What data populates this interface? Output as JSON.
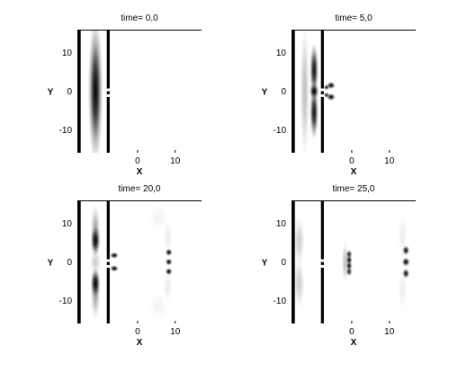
{
  "chart_data": [
    {
      "type": "heatmap",
      "title": "time= 0,0",
      "xlabel": "X",
      "ylabel": "Y",
      "xlim": [
        -16,
        17
      ],
      "ylim": [
        -16,
        16
      ],
      "xticks": [
        "0",
        "10"
      ],
      "xtick_values": [
        0,
        10
      ],
      "yticks": [
        "10",
        "0",
        "-10"
      ],
      "ytick_values": [
        10,
        0,
        -10
      ],
      "colormap": "white-to-black intensity",
      "walls": [
        {
          "x": -15.5
        },
        {
          "x": -7.8,
          "slits": [
            -1.5,
            0.7
          ]
        }
      ],
      "blobs": [
        {
          "x": -11.2,
          "y": 0,
          "sx": 0.9,
          "sy": 8.5,
          "amp": 1.0
        }
      ]
    },
    {
      "type": "heatmap",
      "title": "time= 5,0",
      "xlabel": "X",
      "ylabel": "Y",
      "xlim": [
        -16,
        17
      ],
      "ylim": [
        -16,
        16
      ],
      "xticks": [
        "0",
        "10"
      ],
      "xtick_values": [
        0,
        10
      ],
      "yticks": [
        "10",
        "0",
        "-10"
      ],
      "ytick_values": [
        10,
        0,
        -10
      ],
      "colormap": "white-to-black intensity",
      "walls": [
        {
          "x": -15.5
        },
        {
          "x": -7.8,
          "slits": [
            -1.5,
            0.7
          ]
        }
      ],
      "blobs": [
        {
          "x": -10.0,
          "y": 5.5,
          "sx": 0.55,
          "sy": 3.2,
          "amp": 0.95
        },
        {
          "x": -10.0,
          "y": -5.5,
          "sx": 0.55,
          "sy": 3.2,
          "amp": 0.95
        },
        {
          "x": -10.0,
          "y": 0,
          "sx": 0.6,
          "sy": 0.9,
          "amp": 1.0
        },
        {
          "x": -12.5,
          "y": 0,
          "sx": 0.6,
          "sy": 8,
          "amp": 0.25
        },
        {
          "x": -5.5,
          "y": 1.5,
          "sx": 0.55,
          "sy": 0.45,
          "amp": 1.0
        },
        {
          "x": -5.5,
          "y": -1.5,
          "sx": 0.55,
          "sy": 0.45,
          "amp": 1.0
        },
        {
          "x": -6.7,
          "y": 1.0,
          "sx": 0.35,
          "sy": 0.35,
          "amp": 0.9
        },
        {
          "x": -6.7,
          "y": -1.0,
          "sx": 0.35,
          "sy": 0.35,
          "amp": 0.9
        }
      ]
    },
    {
      "type": "heatmap",
      "title": "time= 20,0",
      "xlabel": "X",
      "ylabel": "Y",
      "xlim": [
        -16,
        17
      ],
      "ylim": [
        -16,
        16
      ],
      "xticks": [
        "0",
        "10"
      ],
      "xtick_values": [
        0,
        10
      ],
      "yticks": [
        "10",
        "0",
        "-10"
      ],
      "ytick_values": [
        10,
        0,
        -10
      ],
      "colormap": "white-to-black intensity",
      "walls": [
        {
          "x": -15.5
        },
        {
          "x": -7.8,
          "slits": [
            -1.5,
            0.7
          ]
        }
      ],
      "blobs": [
        {
          "x": -11.2,
          "y": 5.5,
          "sx": 0.6,
          "sy": 1.8,
          "amp": 1.0
        },
        {
          "x": -11.2,
          "y": -5.5,
          "sx": 0.6,
          "sy": 1.8,
          "amp": 1.0
        },
        {
          "x": -11.2,
          "y": 8.5,
          "sx": 0.6,
          "sy": 3,
          "amp": 0.35
        },
        {
          "x": -11.2,
          "y": -8.5,
          "sx": 0.6,
          "sy": 3,
          "amp": 0.35
        },
        {
          "x": -11.2,
          "y": 0,
          "sx": 0.7,
          "sy": 1.5,
          "amp": 0.2
        },
        {
          "x": -6.2,
          "y": 1.7,
          "sx": 0.55,
          "sy": 0.4,
          "amp": 1.0
        },
        {
          "x": -6.2,
          "y": -1.7,
          "sx": 0.55,
          "sy": 0.4,
          "amp": 1.0
        },
        {
          "x": 8.3,
          "y": 2.5,
          "sx": 0.45,
          "sy": 0.45,
          "amp": 1.0
        },
        {
          "x": 8.3,
          "y": 0,
          "sx": 0.45,
          "sy": 0.45,
          "amp": 1.0
        },
        {
          "x": 8.3,
          "y": -2.5,
          "sx": 0.45,
          "sy": 0.45,
          "amp": 1.0
        },
        {
          "x": 8.0,
          "y": 6.5,
          "sx": 0.6,
          "sy": 2.0,
          "amp": 0.08
        },
        {
          "x": 8.0,
          "y": -6.5,
          "sx": 0.6,
          "sy": 2.0,
          "amp": 0.08
        },
        {
          "x": 5.5,
          "y": 11.5,
          "sx": 1.2,
          "sy": 1.5,
          "amp": 0.05
        },
        {
          "x": 5.5,
          "y": -11.5,
          "sx": 1.2,
          "sy": 1.5,
          "amp": 0.05
        }
      ]
    },
    {
      "type": "heatmap",
      "title": "time= 25,0",
      "xlabel": "X",
      "ylabel": "Y",
      "xlim": [
        -16,
        17
      ],
      "ylim": [
        -16,
        16
      ],
      "xticks": [
        "0",
        "10"
      ],
      "xtick_values": [
        0,
        10
      ],
      "yticks": [
        "10",
        "0",
        "-10"
      ],
      "ytick_values": [
        10,
        0,
        -10
      ],
      "colormap": "white-to-black intensity",
      "walls": [
        {
          "x": -15.5
        },
        {
          "x": -7.8,
          "slits": [
            -1.5,
            0.7
          ]
        }
      ],
      "blobs": [
        {
          "x": -14.0,
          "y": 5.5,
          "sx": 0.7,
          "sy": 3,
          "amp": 0.2
        },
        {
          "x": -14.0,
          "y": -5.5,
          "sx": 0.7,
          "sy": 3,
          "amp": 0.2
        },
        {
          "x": -0.7,
          "y": 2.0,
          "sx": 0.4,
          "sy": 0.55,
          "amp": 0.85
        },
        {
          "x": -0.7,
          "y": 0.5,
          "sx": 0.4,
          "sy": 0.55,
          "amp": 0.95
        },
        {
          "x": -0.7,
          "y": -1.0,
          "sx": 0.4,
          "sy": 0.55,
          "amp": 0.95
        },
        {
          "x": -0.7,
          "y": -2.5,
          "sx": 0.4,
          "sy": 0.55,
          "amp": 0.85
        },
        {
          "x": -1.8,
          "y": 0,
          "sx": 0.4,
          "sy": 2.5,
          "amp": 0.25
        },
        {
          "x": 14.4,
          "y": 3.0,
          "sx": 0.45,
          "sy": 0.6,
          "amp": 0.95
        },
        {
          "x": 14.4,
          "y": 0,
          "sx": 0.5,
          "sy": 0.55,
          "amp": 1.0
        },
        {
          "x": 14.4,
          "y": -3.0,
          "sx": 0.45,
          "sy": 0.6,
          "amp": 0.95
        },
        {
          "x": 13.5,
          "y": 7.0,
          "sx": 0.6,
          "sy": 2.5,
          "amp": 0.07
        },
        {
          "x": 13.5,
          "y": -7.0,
          "sx": 0.6,
          "sy": 2.5,
          "amp": 0.07
        }
      ]
    }
  ]
}
